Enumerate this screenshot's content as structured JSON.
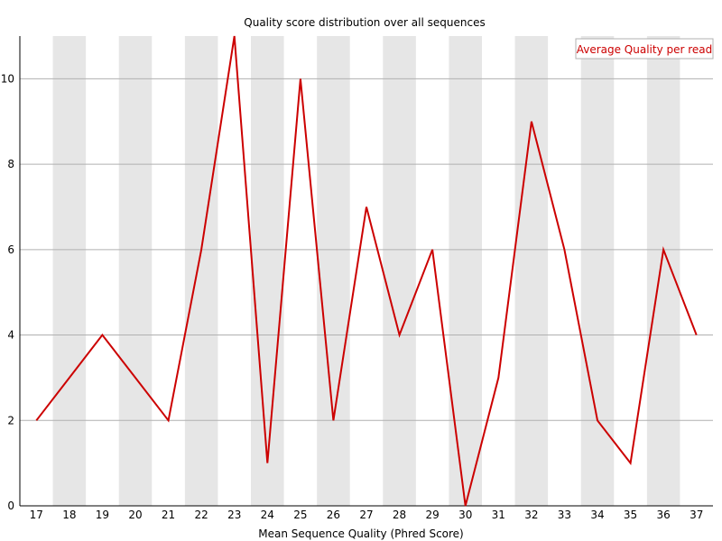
{
  "chart_data": {
    "type": "line",
    "title": "Quality score distribution over all sequences",
    "xlabel": "Mean Sequence Quality (Phred Score)",
    "ylabel": "",
    "x": [
      17,
      18,
      19,
      20,
      21,
      22,
      23,
      24,
      25,
      26,
      27,
      28,
      29,
      30,
      31,
      32,
      33,
      34,
      35,
      36,
      37
    ],
    "series": [
      {
        "name": "Average Quality per read",
        "color": "#cc0000",
        "values": [
          2,
          3,
          4,
          3,
          2,
          6,
          11,
          1,
          10,
          2,
          7,
          4,
          6,
          0,
          3,
          9,
          6,
          2,
          1,
          6,
          4
        ]
      }
    ],
    "ylim": [
      0,
      11
    ],
    "yticks": [
      0,
      2,
      4,
      6,
      8,
      10
    ],
    "grid": true,
    "legend": "top-right",
    "colors": {
      "band": "#e6e6e6",
      "grid": "#b0b0b0",
      "axis": "#000000"
    }
  }
}
